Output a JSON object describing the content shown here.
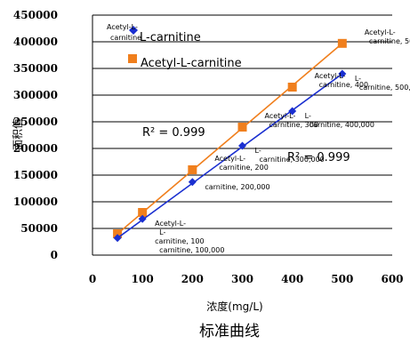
{
  "chart_data": {
    "type": "scatter",
    "title": "",
    "caption": "标准曲线",
    "xlabel": "浓度(mg/L)",
    "ylabel": "面积值",
    "xlim": [
      0,
      600
    ],
    "ylim": [
      0,
      450000
    ],
    "x_ticks": [
      "0",
      "100",
      "200",
      "300",
      "400",
      "500",
      "600"
    ],
    "y_ticks": [
      "0",
      "50000",
      "100000",
      "150000",
      "200000",
      "250000",
      "300000",
      "350000",
      "400000",
      "450000"
    ],
    "grid": "horizontal",
    "legend": "top-left",
    "series": [
      {
        "name": "Acetyl-L-carnitine",
        "color": "#f07f1d",
        "marker": "square",
        "x": [
          50,
          100,
          200,
          300,
          400,
          500
        ],
        "y": [
          40000,
          80000,
          160000,
          240000,
          315000,
          397000
        ],
        "point_labels": [
          "",
          "",
          "Acetyl-L-\ncarnitine, 200",
          "Acetyl-L-\ncarnitine, 300",
          "Acetyl-L-\ncarnitine, 400",
          "Acetyl-L-\ncarnitine, 500"
        ],
        "r2_label": "R² = 0.999"
      },
      {
        "name": "L-carnitine",
        "color": "#1a2fd0",
        "marker": "diamond",
        "x": [
          50,
          100,
          200,
          300,
          400,
          500
        ],
        "y": [
          32000,
          68000,
          137000,
          205000,
          270000,
          340000
        ],
        "point_labels": [
          "",
          "Acetyl-L-\nL-\ncarnitine, 100\ncarnitine, 100,000",
          "carnitine, 200,000",
          "L-\ncarnitine, 300,000",
          "L-\ncarnitine, 400,000",
          "L-\ncarnitine, 500,000"
        ],
        "r2_label": "R² = 0.999"
      }
    ],
    "legend_overlap_label": "Acetyl-L-\ncarnitine"
  }
}
